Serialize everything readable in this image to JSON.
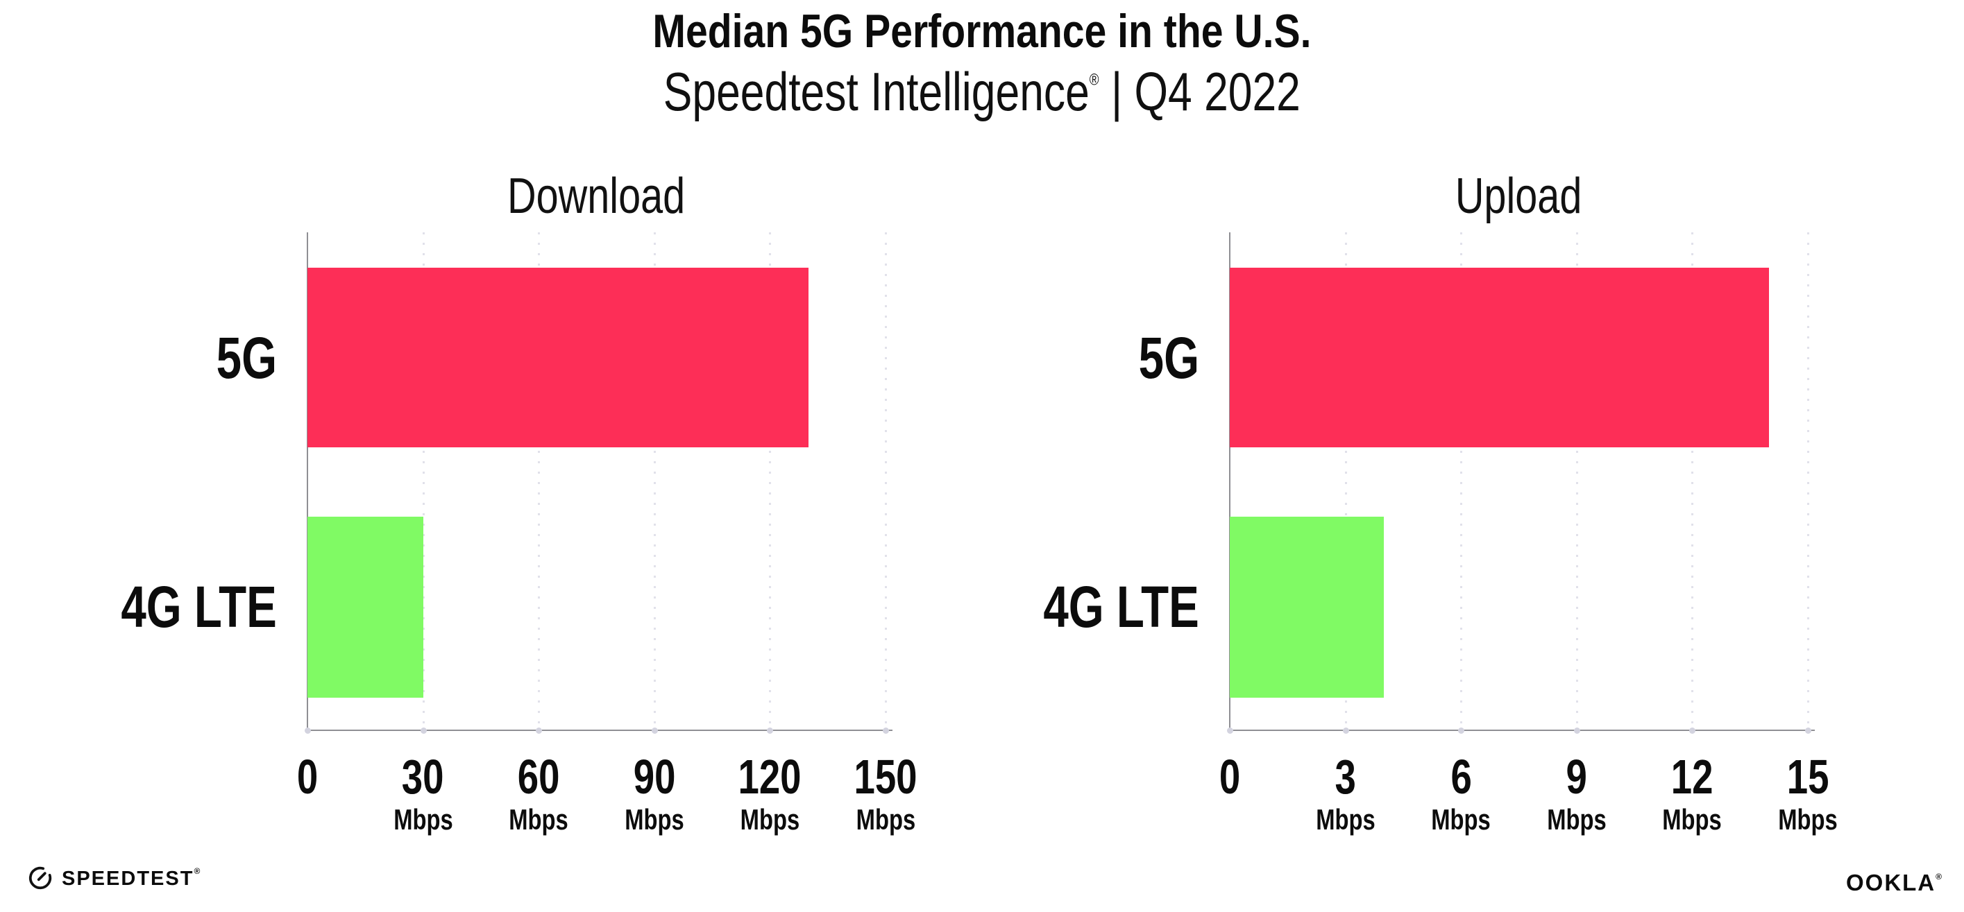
{
  "header": {
    "title": "Median 5G Performance in the U.S.",
    "subtitle_brand": "Speedtest Intelligence",
    "subtitle_reg": "®",
    "subtitle_rest": " | Q4 2022"
  },
  "chart_data": [
    {
      "type": "bar",
      "orientation": "horizontal",
      "title": "Download",
      "categories": [
        "5G",
        "4G LTE"
      ],
      "values": [
        130,
        30
      ],
      "unit": "Mbps",
      "xlim": [
        0,
        150
      ],
      "xticks": [
        0,
        30,
        60,
        90,
        120,
        150
      ],
      "tick_labels": [
        {
          "num": "0",
          "unit": ""
        },
        {
          "num": "30",
          "unit": "Mbps"
        },
        {
          "num": "60",
          "unit": "Mbps"
        },
        {
          "num": "90",
          "unit": "Mbps"
        },
        {
          "num": "120",
          "unit": "Mbps"
        },
        {
          "num": "150",
          "unit": "Mbps"
        }
      ],
      "bar_colors": [
        "#FD2E57",
        "#80FA64"
      ],
      "grid": "vertical-dotted",
      "legend": "none"
    },
    {
      "type": "bar",
      "orientation": "horizontal",
      "title": "Upload",
      "categories": [
        "5G",
        "4G LTE"
      ],
      "values": [
        14,
        4
      ],
      "unit": "Mbps",
      "xlim": [
        0,
        15
      ],
      "xticks": [
        0,
        3,
        6,
        9,
        12,
        15
      ],
      "tick_labels": [
        {
          "num": "0",
          "unit": ""
        },
        {
          "num": "3",
          "unit": "Mbps"
        },
        {
          "num": "6",
          "unit": "Mbps"
        },
        {
          "num": "9",
          "unit": "Mbps"
        },
        {
          "num": "12",
          "unit": "Mbps"
        },
        {
          "num": "15",
          "unit": "Mbps"
        }
      ],
      "bar_colors": [
        "#FD2E57",
        "#80FA64"
      ],
      "grid": "vertical-dotted",
      "legend": "none"
    }
  ],
  "colors": {
    "bar_5g": "#FD2E57",
    "bar_4g_lte": "#80FA64",
    "axis": "#8F8F94",
    "gridline": "#E1E1EA",
    "text": "#0C0C0C"
  },
  "footer": {
    "speedtest_label": "SPEEDTEST",
    "speedtest_reg": "®",
    "ookla_label": "OOKLA",
    "ookla_reg": "®"
  }
}
